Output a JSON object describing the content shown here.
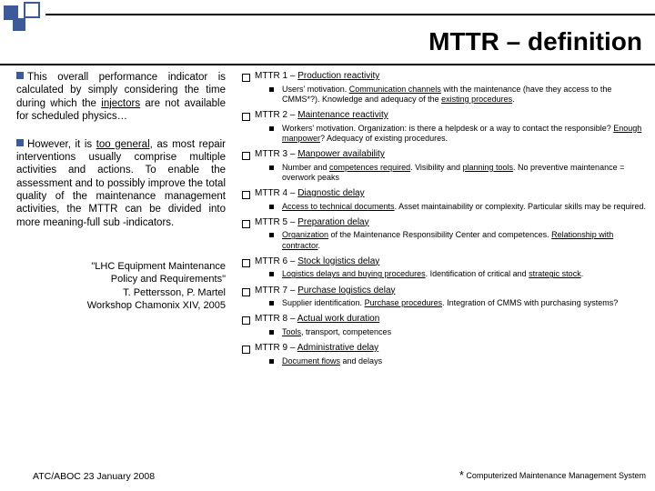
{
  "title": "MTTR – definition",
  "left": {
    "para1_a": "This overall performance indicator is calculated by simply considering the time during which the ",
    "para1_inj": "injectors",
    "para1_b": " are not available for scheduled physics…",
    "para2_a": "However, it is ",
    "para2_u": "too general",
    "para2_b": ", as most repair interventions usually comprise multiple activities and actions. To enable the assessment and to possibly improve the total quality of the maintenance management activities, the MTTR can be divided into more meaning-full sub -indicators.",
    "quote1": "\"LHC Equipment Maintenance",
    "quote2": "Policy and Requirements\"",
    "quote3": "T. Pettersson, P. Martel",
    "quote4": "Workshop Chamonix XIV, 2005"
  },
  "items": [
    {
      "num": "MTTR 1 – ",
      "label": "Production reactivity",
      "sub_a": "Users' motivation. ",
      "sub_u1": "Communication channels",
      "sub_b": " with the maintenance (have they access to the CMMS*?). Knowledge and adequacy of the ",
      "sub_u2": "existing procedures",
      "sub_c": "."
    },
    {
      "num": "MTTR 2 – ",
      "label": "Maintenance reactivity",
      "sub_a": "Workers' motivation. Organization: is there a helpdesk or a way to contact the responsible? ",
      "sub_u1": "Enough manpower",
      "sub_b": "? Adequacy of existing procedures.",
      "sub_u2": "",
      "sub_c": ""
    },
    {
      "num": "MTTR 3 – ",
      "label": "Manpower availability",
      "sub_a": "Number and ",
      "sub_u1": "competences required",
      "sub_b": ". Visibility and ",
      "sub_u2": "planning tools",
      "sub_c": ". No preventive maintenance = overwork peaks"
    },
    {
      "num": "MTTR 4 – ",
      "label": "Diagnostic delay",
      "sub_a": "",
      "sub_u1": "Access to technical documents",
      "sub_b": ". Asset maintainability or complexity. Particular skills may be required.",
      "sub_u2": "",
      "sub_c": ""
    },
    {
      "num": "MTTR 5 – ",
      "label": "Preparation delay",
      "sub_a": "",
      "sub_u1": "Organization",
      "sub_b": " of the Maintenance Responsibility Center and competences. ",
      "sub_u2": "Relationship with contractor",
      "sub_c": "."
    },
    {
      "num": "MTTR 6 – ",
      "label": "Stock logistics delay",
      "sub_a": "",
      "sub_u1": "Logistics delays and buying procedures",
      "sub_b": ". Identification of critical and ",
      "sub_u2": "strategic stock",
      "sub_c": "."
    },
    {
      "num": "MTTR 7 – ",
      "label": "Purchase logistics delay",
      "sub_a": "Supplier identification. ",
      "sub_u1": "Purchase procedures",
      "sub_b": ". Integration of CMMS with purchasing systems?",
      "sub_u2": "",
      "sub_c": ""
    },
    {
      "num": "MTTR 8 – ",
      "label": "Actual work duration",
      "sub_a": "",
      "sub_u1": "Tools",
      "sub_b": ", transport, competences",
      "sub_u2": "",
      "sub_c": ""
    },
    {
      "num": "MTTR 9 – ",
      "label": "Administrative delay",
      "sub_a": "",
      "sub_u1": "Document flows",
      "sub_b": " and delays",
      "sub_u2": "",
      "sub_c": ""
    }
  ],
  "footer": {
    "left": "ATC/ABOC 23 January 2008",
    "right": "Computerized Maintenance Management System"
  }
}
